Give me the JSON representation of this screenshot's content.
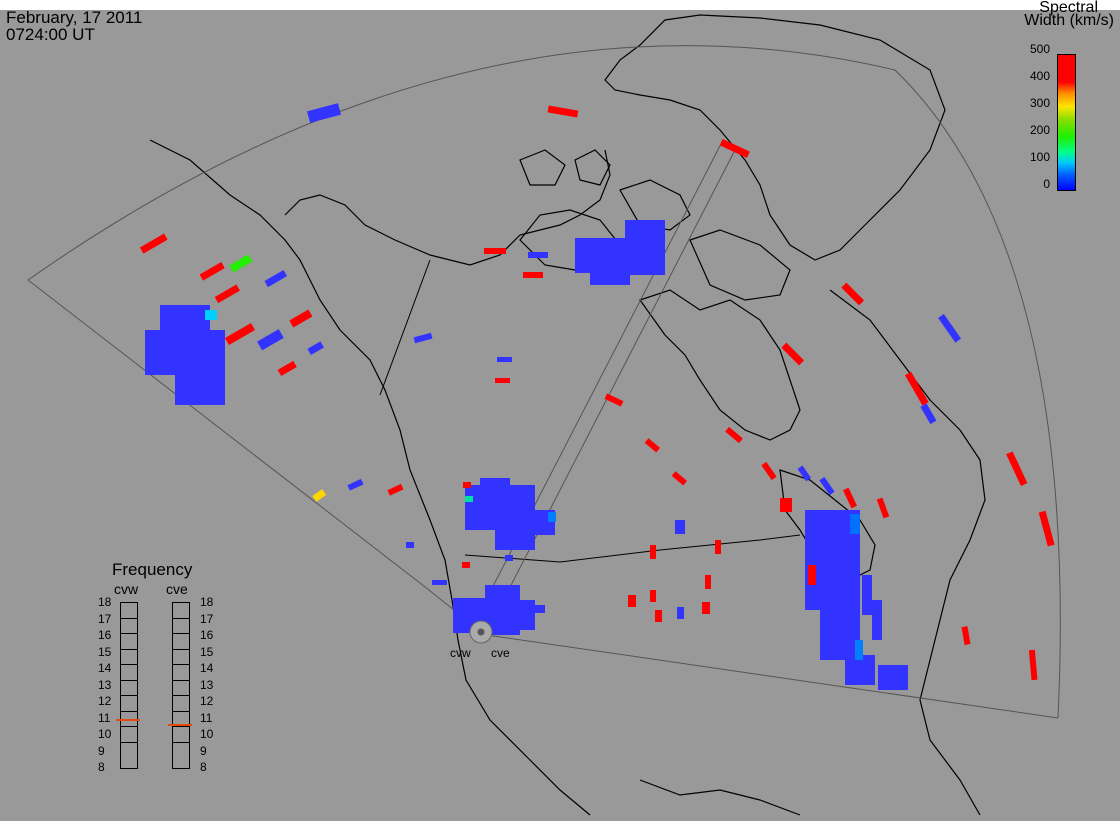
{
  "header": {
    "date": "February, 17 2011",
    "time": "0724:00 UT"
  },
  "colorbar": {
    "title_line1": "Spectral",
    "title_line2": "Width (km/s)",
    "ticks": [
      "500",
      "400",
      "300",
      "200",
      "100",
      "0"
    ],
    "colors": [
      "#0000ff",
      "#00c8ff",
      "#22ee00",
      "#ffe400",
      "#ff8800",
      "#ff0000"
    ]
  },
  "frequency_panel": {
    "title": "Frequency",
    "stations": [
      "cvw",
      "cve"
    ],
    "scale": [
      "18",
      "17",
      "16",
      "15",
      "14",
      "13",
      "12",
      "11",
      "10",
      "9",
      "8"
    ],
    "cvw_frequency_mhz": 10.9,
    "cve_frequency_mhz": 10.6
  },
  "radar_sites": [
    "cvw",
    "cve"
  ],
  "map": {
    "background": "#999999",
    "land_outline": "#000000",
    "fov_outline": "#555555"
  }
}
